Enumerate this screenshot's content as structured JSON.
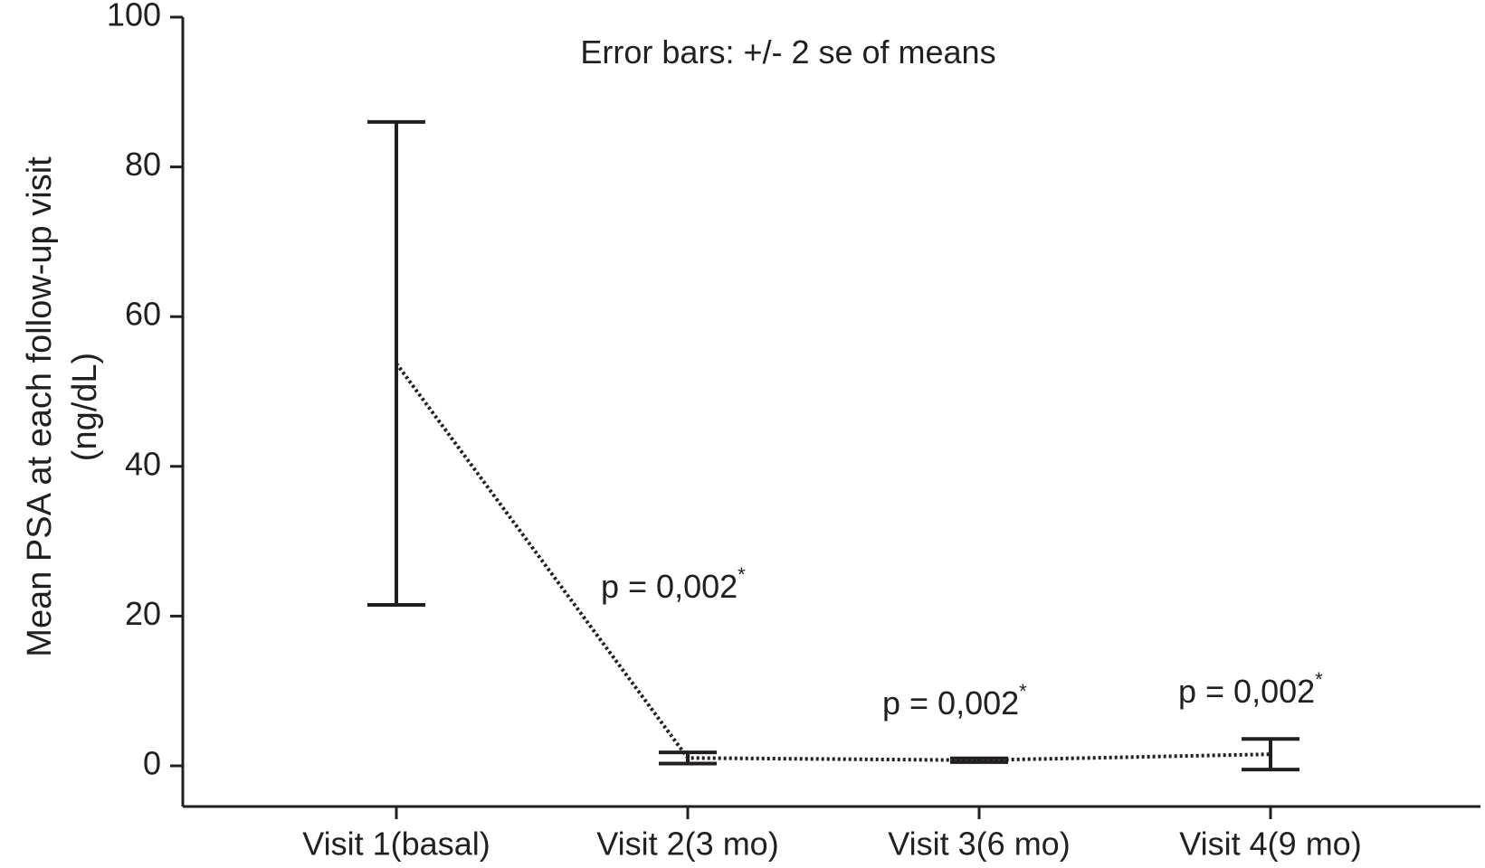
{
  "chart_data": {
    "type": "errorbar-line",
    "ylabel": [
      "Mean PSA at each follow-up visit",
      "(ng/dL)"
    ],
    "categories": [
      "Visit 1(basal)",
      "Visit 2(3 mo)",
      "Visit 3(6 mo)",
      "Visit 4(9 mo)"
    ],
    "values": [
      53.75,
      1.05,
      0.75,
      1.55
    ],
    "errors": [
      32.25,
      0.75,
      0.25,
      2.05
    ],
    "color": "#231f20",
    "ylim": [
      -5,
      100
    ],
    "yticks": [
      0,
      20,
      40,
      60,
      80,
      100
    ],
    "annotations": [
      {
        "text": "Error bars: +/- 2 se of means"
      },
      {
        "text": "p = 0,002",
        "mark": "*"
      },
      {
        "text": "p = 0,002",
        "mark": "*"
      },
      {
        "text": "p = 0,002",
        "mark": "*"
      }
    ]
  }
}
